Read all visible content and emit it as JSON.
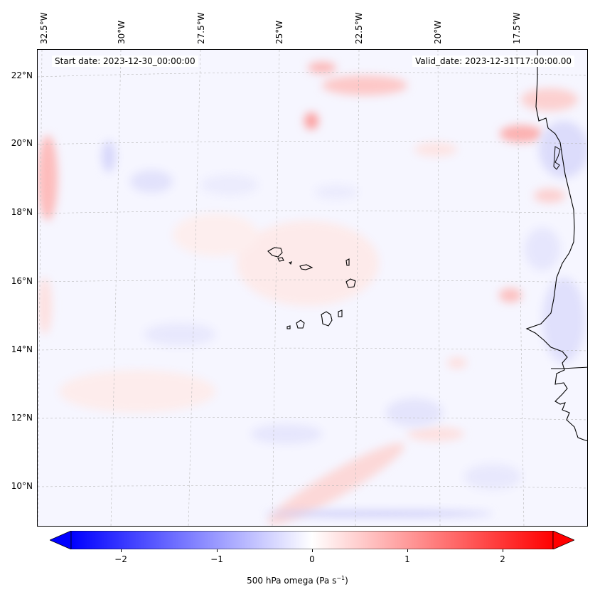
{
  "map": {
    "start_date_text": "Start date: 2023-12-30_00:00:00",
    "valid_date_text": "Valid_date: 2023-12-31T17:00:00.00",
    "lon_labels": [
      "32.5°W",
      "30°W",
      "27.5°W",
      "25°W",
      "22.5°W",
      "20°W",
      "17.5°W"
    ],
    "lat_labels": [
      "22°N",
      "20°N",
      "18°N",
      "16°N",
      "14°N",
      "12°N",
      "10°N"
    ],
    "gridlines": true,
    "colors": {
      "negative": "#0000ff",
      "zero": "#ffffff",
      "positive": "#ff0000",
      "coastline": "#000000"
    }
  },
  "colorbar": {
    "ticks": [
      "−2",
      "−1",
      "0",
      "1",
      "2"
    ],
    "label": "500 hPa omega (Pa s",
    "label_sup": "−1",
    "label_close": ")",
    "extend": "both"
  }
}
